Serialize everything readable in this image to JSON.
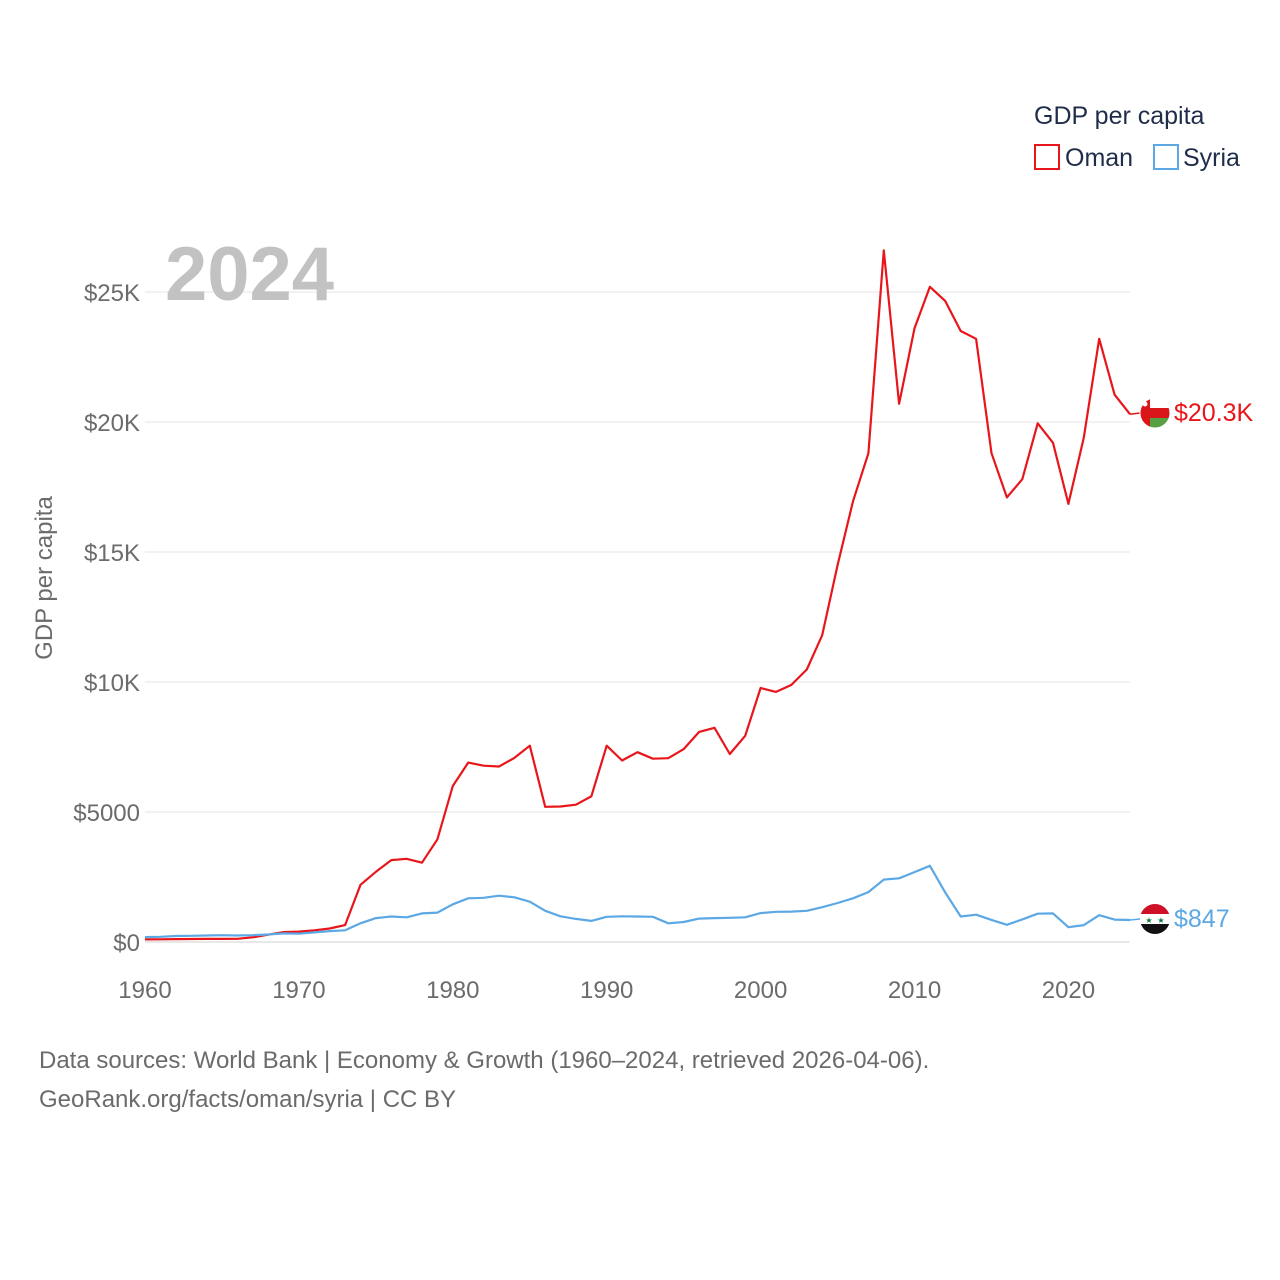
{
  "chart_data": {
    "type": "line",
    "year_label": "2024",
    "ylabel": "GDP per capita",
    "xlabel": "",
    "xlim": [
      1960,
      2024
    ],
    "ylim": [
      0,
      27000
    ],
    "x_ticks": [
      1960,
      1970,
      1980,
      1990,
      2000,
      2010,
      2020
    ],
    "x_tick_labels": [
      "1960",
      "1970",
      "1980",
      "1990",
      "2000",
      "2010",
      "2020"
    ],
    "y_ticks": [
      0,
      5000,
      10000,
      15000,
      20000,
      25000
    ],
    "y_tick_labels": [
      "$0",
      "$5000",
      "$10K",
      "$15K",
      "$20K",
      "$25K"
    ],
    "legend": {
      "title": "GDP per capita",
      "entries": [
        "Oman",
        "Syria"
      ]
    },
    "series": [
      {
        "name": "Oman",
        "color": "#e8161b",
        "end_label": "$20.3K",
        "x": [
          1960,
          1961,
          1962,
          1963,
          1964,
          1965,
          1966,
          1967,
          1968,
          1969,
          1970,
          1971,
          1972,
          1973,
          1974,
          1975,
          1976,
          1977,
          1978,
          1979,
          1980,
          1981,
          1982,
          1983,
          1984,
          1985,
          1986,
          1987,
          1988,
          1989,
          1990,
          1991,
          1992,
          1993,
          1994,
          1995,
          1996,
          1997,
          1998,
          1999,
          2000,
          2001,
          2002,
          2003,
          2004,
          2005,
          2006,
          2007,
          2008,
          2009,
          2010,
          2011,
          2012,
          2013,
          2014,
          2015,
          2016,
          2017,
          2018,
          2019,
          2020,
          2021,
          2022,
          2023,
          2024
        ],
        "values": [
          100,
          105,
          110,
          115,
          118,
          120,
          122,
          180,
          280,
          380,
          400,
          450,
          520,
          650,
          2200,
          2700,
          3150,
          3200,
          3050,
          3950,
          6000,
          6900,
          6780,
          6750,
          7080,
          7550,
          5200,
          5210,
          5280,
          5600,
          7550,
          6980,
          7300,
          7050,
          7070,
          7420,
          8080,
          8240,
          7230,
          7930,
          9770,
          9620,
          9890,
          10480,
          11800,
          14500,
          16950,
          18800,
          26600,
          20700,
          23600,
          25200,
          24650,
          23500,
          23200,
          18800,
          17100,
          17800,
          19950,
          19200,
          16850,
          19400,
          23200,
          21050,
          20300
        ]
      },
      {
        "name": "Syria",
        "color": "#5ca8e5",
        "end_label": "$847",
        "x": [
          1960,
          1961,
          1962,
          1963,
          1964,
          1965,
          1966,
          1967,
          1968,
          1969,
          1970,
          1971,
          1972,
          1973,
          1974,
          1975,
          1976,
          1977,
          1978,
          1979,
          1980,
          1981,
          1982,
          1983,
          1984,
          1985,
          1986,
          1987,
          1988,
          1989,
          1990,
          1991,
          1992,
          1993,
          1994,
          1995,
          1996,
          1997,
          1998,
          1999,
          2000,
          2001,
          2002,
          2003,
          2004,
          2005,
          2006,
          2007,
          2008,
          2009,
          2010,
          2011,
          2012,
          2013,
          2014,
          2015,
          2016,
          2017,
          2018,
          2019,
          2020,
          2021,
          2022,
          2023,
          2024
        ],
        "values": [
          190,
          200,
          230,
          240,
          250,
          260,
          250,
          260,
          290,
          330,
          320,
          370,
          420,
          450,
          720,
          920,
          980,
          950,
          1100,
          1130,
          1450,
          1680,
          1700,
          1780,
          1720,
          1550,
          1200,
          990,
          890,
          810,
          970,
          990,
          980,
          970,
          720,
          770,
          900,
          920,
          930,
          950,
          1110,
          1160,
          1170,
          1200,
          1340,
          1500,
          1680,
          1920,
          2400,
          2450,
          2690,
          2930,
          1900,
          980,
          1050,
          850,
          660,
          870,
          1090,
          1100,
          570,
          650,
          1030,
          860,
          847
        ]
      }
    ]
  },
  "footer": {
    "line1": "Data sources: World Bank | Economy & Growth (1960–2024, retrieved 2026-04-06).",
    "line2": "GeoRank.org/facts/oman/syria | CC BY"
  },
  "flags": {
    "oman": "oman-flag-icon",
    "syria": "syria-flag-icon"
  }
}
